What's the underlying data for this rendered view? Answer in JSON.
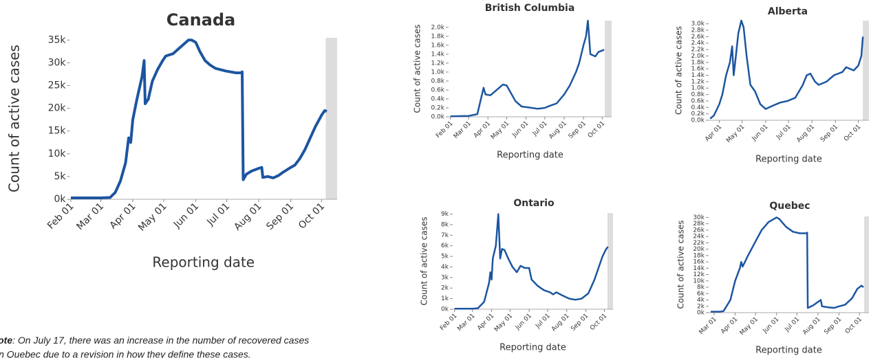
{
  "note": {
    "label": "Note",
    "lines": [
      ": On July 17, there was an increase in the number of recovered cases",
      "in Quebec due to a revision in how they define these cases."
    ]
  },
  "chart_data": [
    {
      "type": "line",
      "title": "Canada",
      "x_label": "Reporting date",
      "y_label": "Count of active cases",
      "color": "#1c55a0",
      "xlim": [
        "01-31",
        "10-16"
      ],
      "ylim": [
        0,
        35500
      ],
      "highlight": [
        "10-05",
        "10-16"
      ],
      "highlight_color": "#dddddd",
      "xticks": [
        {
          "value": "02-01",
          "label": "Feb 01"
        },
        {
          "value": "03-01",
          "label": "Mar 01"
        },
        {
          "value": "04-01",
          "label": "Apr 01"
        },
        {
          "value": "05-01",
          "label": "May 01"
        },
        {
          "value": "06-01",
          "label": "Jun 01"
        },
        {
          "value": "07-01",
          "label": "Jul 01"
        },
        {
          "value": "08-01",
          "label": "Aug 01"
        },
        {
          "value": "09-01",
          "label": "Sep 01"
        },
        {
          "value": "10-01",
          "label": "Oct 01"
        }
      ],
      "yticks": [
        {
          "value": 0,
          "label": "0k"
        },
        {
          "value": 5000,
          "label": "5k"
        },
        {
          "value": 10000,
          "label": "10k"
        },
        {
          "value": 15000,
          "label": "15k"
        },
        {
          "value": 20000,
          "label": "20k"
        },
        {
          "value": 25000,
          "label": "25k"
        },
        {
          "value": 30000,
          "label": "30k"
        },
        {
          "value": 35000,
          "label": "35k"
        }
      ],
      "x": [
        "02-01",
        "03-01",
        "03-10",
        "03-15",
        "03-20",
        "03-25",
        "03-28",
        "03-30",
        "04-01",
        "04-05",
        "04-10",
        "04-12",
        "04-13",
        "04-16",
        "04-20",
        "04-25",
        "04-30",
        "05-03",
        "05-10",
        "05-15",
        "05-20",
        "05-25",
        "05-28",
        "06-01",
        "06-05",
        "06-10",
        "06-15",
        "06-20",
        "06-30",
        "07-10",
        "07-15",
        "07-16",
        "07-17",
        "07-20",
        "07-25",
        "08-01",
        "08-04",
        "08-05",
        "08-10",
        "08-15",
        "08-20",
        "08-25",
        "09-01",
        "09-05",
        "09-10",
        "09-15",
        "09-20",
        "09-25",
        "10-01",
        "10-04",
        "10-06"
      ],
      "values": [
        300,
        300,
        400,
        1500,
        4000,
        8000,
        13500,
        12500,
        17500,
        22000,
        27000,
        30500,
        21000,
        22000,
        26000,
        28500,
        30500,
        31500,
        32000,
        33000,
        34000,
        35000,
        35000,
        34500,
        32500,
        30500,
        29500,
        28800,
        28200,
        27800,
        27800,
        28000,
        4300,
        5500,
        6200,
        6800,
        7000,
        4800,
        5000,
        4700,
        5200,
        6000,
        7000,
        7500,
        9000,
        11000,
        13500,
        16000,
        18500,
        19500,
        19300
      ]
    },
    {
      "type": "line",
      "title": "British Columbia",
      "x_label": "Reporting date",
      "y_label": "Count of active cases",
      "color": "#1c55a0",
      "xlim": [
        "01-29",
        "10-16"
      ],
      "ylim": [
        0,
        2150
      ],
      "highlight": [
        "10-05",
        "10-16"
      ],
      "highlight_color": "#dddddd",
      "xticks": [
        {
          "value": "02-01",
          "label": "Feb 01"
        },
        {
          "value": "03-01",
          "label": "Mar 01"
        },
        {
          "value": "04-01",
          "label": "Apr 01"
        },
        {
          "value": "05-01",
          "label": "May 01"
        },
        {
          "value": "06-01",
          "label": "Jun 01"
        },
        {
          "value": "07-01",
          "label": "Jul 01"
        },
        {
          "value": "08-01",
          "label": "Aug 01"
        },
        {
          "value": "09-01",
          "label": "Sep 01"
        },
        {
          "value": "10-01",
          "label": "Oct 01"
        }
      ],
      "yticks": [
        {
          "value": 0,
          "label": "0.0k"
        },
        {
          "value": 200,
          "label": "0.2k"
        },
        {
          "value": 400,
          "label": "0.4k"
        },
        {
          "value": 600,
          "label": "0.6k"
        },
        {
          "value": 800,
          "label": "0.8k"
        },
        {
          "value": 1000,
          "label": "1.0k"
        },
        {
          "value": 1200,
          "label": "1.2k"
        },
        {
          "value": 1400,
          "label": "1.4k"
        },
        {
          "value": 1600,
          "label": "1.6k"
        },
        {
          "value": 1800,
          "label": "1.8k"
        },
        {
          "value": 2000,
          "label": "2.0k"
        }
      ],
      "x": [
        "02-01",
        "03-01",
        "03-15",
        "03-25",
        "03-28",
        "04-05",
        "04-15",
        "04-25",
        "05-01",
        "05-05",
        "05-15",
        "05-25",
        "06-10",
        "06-20",
        "07-01",
        "07-10",
        "07-20",
        "08-01",
        "08-10",
        "08-20",
        "08-25",
        "09-01",
        "09-05",
        "09-08",
        "09-12",
        "09-20",
        "09-25",
        "10-01",
        "10-04"
      ],
      "values": [
        10,
        20,
        60,
        650,
        500,
        480,
        600,
        720,
        700,
        600,
        350,
        230,
        200,
        180,
        200,
        250,
        300,
        500,
        700,
        1000,
        1200,
        1600,
        1800,
        2150,
        1400,
        1350,
        1450,
        1480,
        1500
      ]
    },
    {
      "type": "line",
      "title": "Alberta",
      "x_label": "Reporting date",
      "y_label": "Count of active cases",
      "color": "#1c55a0",
      "xlim": [
        "03-18",
        "10-15"
      ],
      "ylim": [
        0,
        3100
      ],
      "highlight": [
        "10-07",
        "10-15"
      ],
      "highlight_color": "#dddddd",
      "xticks": [
        {
          "value": "04-01",
          "label": "Apr 01"
        },
        {
          "value": "05-01",
          "label": "May 01"
        },
        {
          "value": "06-01",
          "label": "Jun 01"
        },
        {
          "value": "07-01",
          "label": "Jul 01"
        },
        {
          "value": "08-01",
          "label": "Aug 01"
        },
        {
          "value": "09-01",
          "label": "Sep 01"
        },
        {
          "value": "10-01",
          "label": "Oct 01"
        }
      ],
      "yticks": [
        {
          "value": 0,
          "label": "0.0k"
        },
        {
          "value": 200,
          "label": "0.2k"
        },
        {
          "value": 400,
          "label": "0.4k"
        },
        {
          "value": 600,
          "label": "0.6k"
        },
        {
          "value": 800,
          "label": "0.8k"
        },
        {
          "value": 1000,
          "label": "1.0k"
        },
        {
          "value": 1200,
          "label": "1.2k"
        },
        {
          "value": 1400,
          "label": "1.4k"
        },
        {
          "value": 1600,
          "label": "1.6k"
        },
        {
          "value": 1800,
          "label": "1.8k"
        },
        {
          "value": 2000,
          "label": "2.0k"
        },
        {
          "value": 2200,
          "label": "2.2k"
        },
        {
          "value": 2400,
          "label": "2.4k"
        },
        {
          "value": 2600,
          "label": "2.6k"
        },
        {
          "value": 2800,
          "label": "2.8k"
        },
        {
          "value": 3000,
          "label": "3.0k"
        }
      ],
      "x": [
        "03-20",
        "03-25",
        "04-01",
        "04-05",
        "04-10",
        "04-15",
        "04-18",
        "04-20",
        "04-22",
        "04-26",
        "04-30",
        "05-03",
        "05-07",
        "05-12",
        "05-18",
        "05-25",
        "06-01",
        "06-10",
        "06-20",
        "06-30",
        "07-10",
        "07-20",
        "07-25",
        "07-30",
        "08-05",
        "08-10",
        "08-20",
        "08-30",
        "09-10",
        "09-15",
        "09-25",
        "10-01",
        "10-05",
        "10-07"
      ],
      "values": [
        50,
        150,
        500,
        800,
        1400,
        1800,
        2300,
        1400,
        1800,
        2700,
        3100,
        2900,
        2000,
        1100,
        900,
        500,
        350,
        450,
        550,
        600,
        700,
        1100,
        1400,
        1450,
        1200,
        1100,
        1200,
        1400,
        1500,
        1650,
        1550,
        1700,
        2000,
        2600
      ]
    },
    {
      "type": "line",
      "title": "Ontario",
      "x_label": "Reporting date",
      "y_label": "Count of active cases",
      "color": "#1c55a0",
      "xlim": [
        "01-29",
        "10-15"
      ],
      "ylim": [
        0,
        9100
      ],
      "highlight": [
        "10-06",
        "10-15"
      ],
      "highlight_color": "#dddddd",
      "xticks": [
        {
          "value": "02-01",
          "label": "Feb 01"
        },
        {
          "value": "03-01",
          "label": "Mar 01"
        },
        {
          "value": "04-01",
          "label": "Apr 01"
        },
        {
          "value": "05-01",
          "label": "May 01"
        },
        {
          "value": "06-01",
          "label": "Jun 01"
        },
        {
          "value": "07-01",
          "label": "Jul 01"
        },
        {
          "value": "08-01",
          "label": "Aug 01"
        },
        {
          "value": "09-01",
          "label": "Sep 01"
        },
        {
          "value": "10-01",
          "label": "Oct 01"
        }
      ],
      "yticks": [
        {
          "value": 0,
          "label": "0k"
        },
        {
          "value": 1000,
          "label": "1k"
        },
        {
          "value": 2000,
          "label": "2k"
        },
        {
          "value": 3000,
          "label": "3k"
        },
        {
          "value": 4000,
          "label": "4k"
        },
        {
          "value": 5000,
          "label": "5k"
        },
        {
          "value": 6000,
          "label": "6k"
        },
        {
          "value": 7000,
          "label": "7k"
        },
        {
          "value": 8000,
          "label": "8k"
        },
        {
          "value": 9000,
          "label": "9k"
        }
      ],
      "x": [
        "02-01",
        "03-01",
        "03-10",
        "03-20",
        "03-28",
        "03-30",
        "04-01",
        "04-03",
        "04-08",
        "04-12",
        "04-15",
        "04-18",
        "04-22",
        "04-28",
        "05-05",
        "05-12",
        "05-18",
        "05-25",
        "06-01",
        "06-05",
        "06-15",
        "06-25",
        "07-05",
        "07-10",
        "07-15",
        "07-25",
        "08-05",
        "08-15",
        "08-25",
        "09-05",
        "09-15",
        "09-22",
        "09-28",
        "10-04",
        "10-07"
      ],
      "values": [
        50,
        50,
        100,
        700,
        2500,
        3500,
        2800,
        4800,
        6000,
        9000,
        4800,
        5700,
        5600,
        4800,
        4000,
        3500,
        4100,
        3900,
        3900,
        2800,
        2200,
        1800,
        1600,
        1400,
        1600,
        1300,
        1000,
        900,
        1000,
        1500,
        2800,
        4000,
        5000,
        5700,
        5900
      ]
    },
    {
      "type": "line",
      "title": "Quebec",
      "x_label": "Reporting date",
      "y_label": "Count of active cases",
      "color": "#1c55a0",
      "xlim": [
        "02-22",
        "10-15"
      ],
      "ylim": [
        0,
        30300
      ],
      "highlight": [
        "10-08",
        "10-15"
      ],
      "highlight_color": "#dddddd",
      "xticks": [
        {
          "value": "03-01",
          "label": "Mar 01"
        },
        {
          "value": "04-01",
          "label": "Apr 01"
        },
        {
          "value": "05-01",
          "label": "May 01"
        },
        {
          "value": "06-01",
          "label": "Jun 01"
        },
        {
          "value": "07-01",
          "label": "Jul 01"
        },
        {
          "value": "08-01",
          "label": "Aug 01"
        },
        {
          "value": "09-01",
          "label": "Sep 01"
        },
        {
          "value": "10-01",
          "label": "Oct 01"
        }
      ],
      "yticks": [
        {
          "value": 0,
          "label": "0k"
        },
        {
          "value": 2000,
          "label": "2k"
        },
        {
          "value": 4000,
          "label": "4k"
        },
        {
          "value": 6000,
          "label": "6k"
        },
        {
          "value": 8000,
          "label": "8k"
        },
        {
          "value": 10000,
          "label": "10k"
        },
        {
          "value": 12000,
          "label": "12k"
        },
        {
          "value": 14000,
          "label": "14k"
        },
        {
          "value": 16000,
          "label": "16k"
        },
        {
          "value": 18000,
          "label": "18k"
        },
        {
          "value": 20000,
          "label": "20k"
        },
        {
          "value": 22000,
          "label": "22k"
        },
        {
          "value": 24000,
          "label": "24k"
        },
        {
          "value": 26000,
          "label": "26k"
        },
        {
          "value": 28000,
          "label": "28k"
        },
        {
          "value": 30000,
          "label": "30k"
        }
      ],
      "x": [
        "02-25",
        "03-10",
        "03-15",
        "03-25",
        "04-01",
        "04-08",
        "04-10",
        "04-12",
        "04-20",
        "04-30",
        "05-10",
        "05-20",
        "06-01",
        "06-05",
        "06-15",
        "06-25",
        "07-05",
        "07-15",
        "07-16",
        "07-17",
        "07-25",
        "08-05",
        "08-07",
        "08-15",
        "08-25",
        "09-01",
        "09-10",
        "09-20",
        "09-28",
        "10-04",
        "10-07"
      ],
      "values": [
        300,
        300,
        500,
        4000,
        10000,
        14000,
        16000,
        14500,
        18000,
        22000,
        26000,
        28500,
        30000,
        29500,
        27000,
        25500,
        25000,
        25000,
        25200,
        1500,
        2300,
        4000,
        2000,
        1700,
        1500,
        2000,
        2500,
        4500,
        7500,
        8500,
        8000
      ]
    }
  ]
}
